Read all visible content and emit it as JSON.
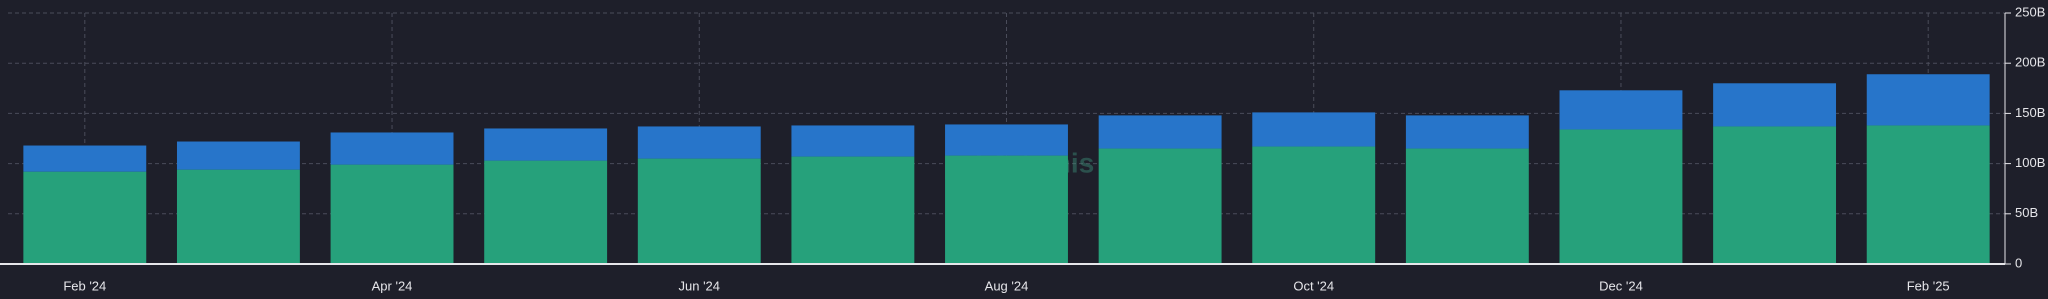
{
  "chart_data": {
    "type": "stacked_bar",
    "categories": [
      "Feb '24",
      null,
      "Apr '24",
      null,
      "Jun '24",
      null,
      "Aug '24",
      null,
      "Oct '24",
      null,
      "Dec '24",
      null,
      "Feb '25"
    ],
    "series": [
      {
        "color": "#26a17b",
        "values": [
          92,
          94,
          99,
          103,
          105,
          107,
          108,
          115,
          117,
          115,
          134,
          137,
          138
        ]
      },
      {
        "color": "#2775ca",
        "values": [
          26,
          28,
          32,
          32,
          32,
          31,
          31,
          33,
          34,
          33,
          39,
          43,
          51
        ]
      }
    ],
    "ylim": [
      0,
      250
    ],
    "yticks": [
      0,
      {
        "value": 50,
        "label": "50B"
      },
      {
        "value": 100,
        "label": "100B"
      },
      {
        "value": 150,
        "label": "150B"
      },
      {
        "value": 200,
        "label": "200B"
      },
      {
        "value": 250,
        "label": "250B"
      }
    ],
    "grid": true,
    "watermark": "Artemis"
  }
}
